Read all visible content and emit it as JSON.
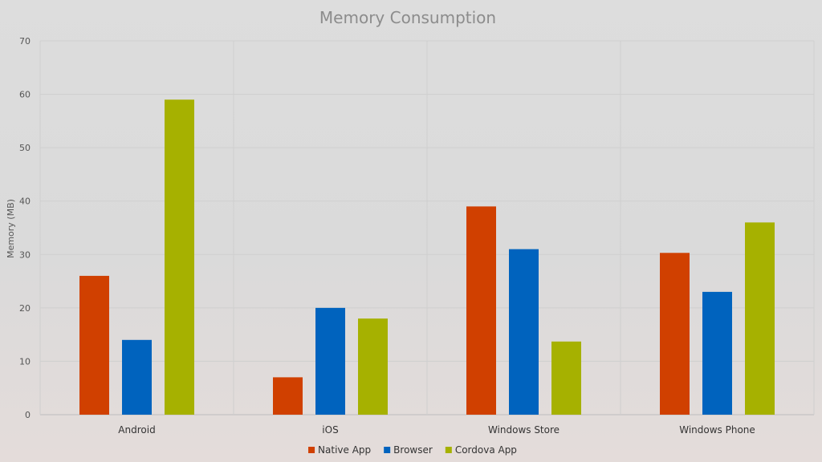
{
  "chart_data": {
    "type": "bar",
    "title": "Memory Consumption",
    "xlabel": "",
    "ylabel": "Memory (MB)",
    "ylim": [
      0,
      70
    ],
    "yticks": [
      0,
      10,
      20,
      30,
      40,
      50,
      60,
      70
    ],
    "categories": [
      "Android",
      "iOS",
      "Windows Store",
      "Windows Phone"
    ],
    "series": [
      {
        "name": "Native App",
        "color": "#d04000",
        "values": [
          26,
          7,
          39,
          30.3
        ]
      },
      {
        "name": "Browser",
        "color": "#0063be",
        "values": [
          14,
          20,
          31,
          23
        ]
      },
      {
        "name": "Cordova App",
        "color": "#a6b100",
        "values": [
          59,
          18,
          13.7,
          36
        ]
      }
    ],
    "grid": true,
    "legend": "bottom-center"
  }
}
